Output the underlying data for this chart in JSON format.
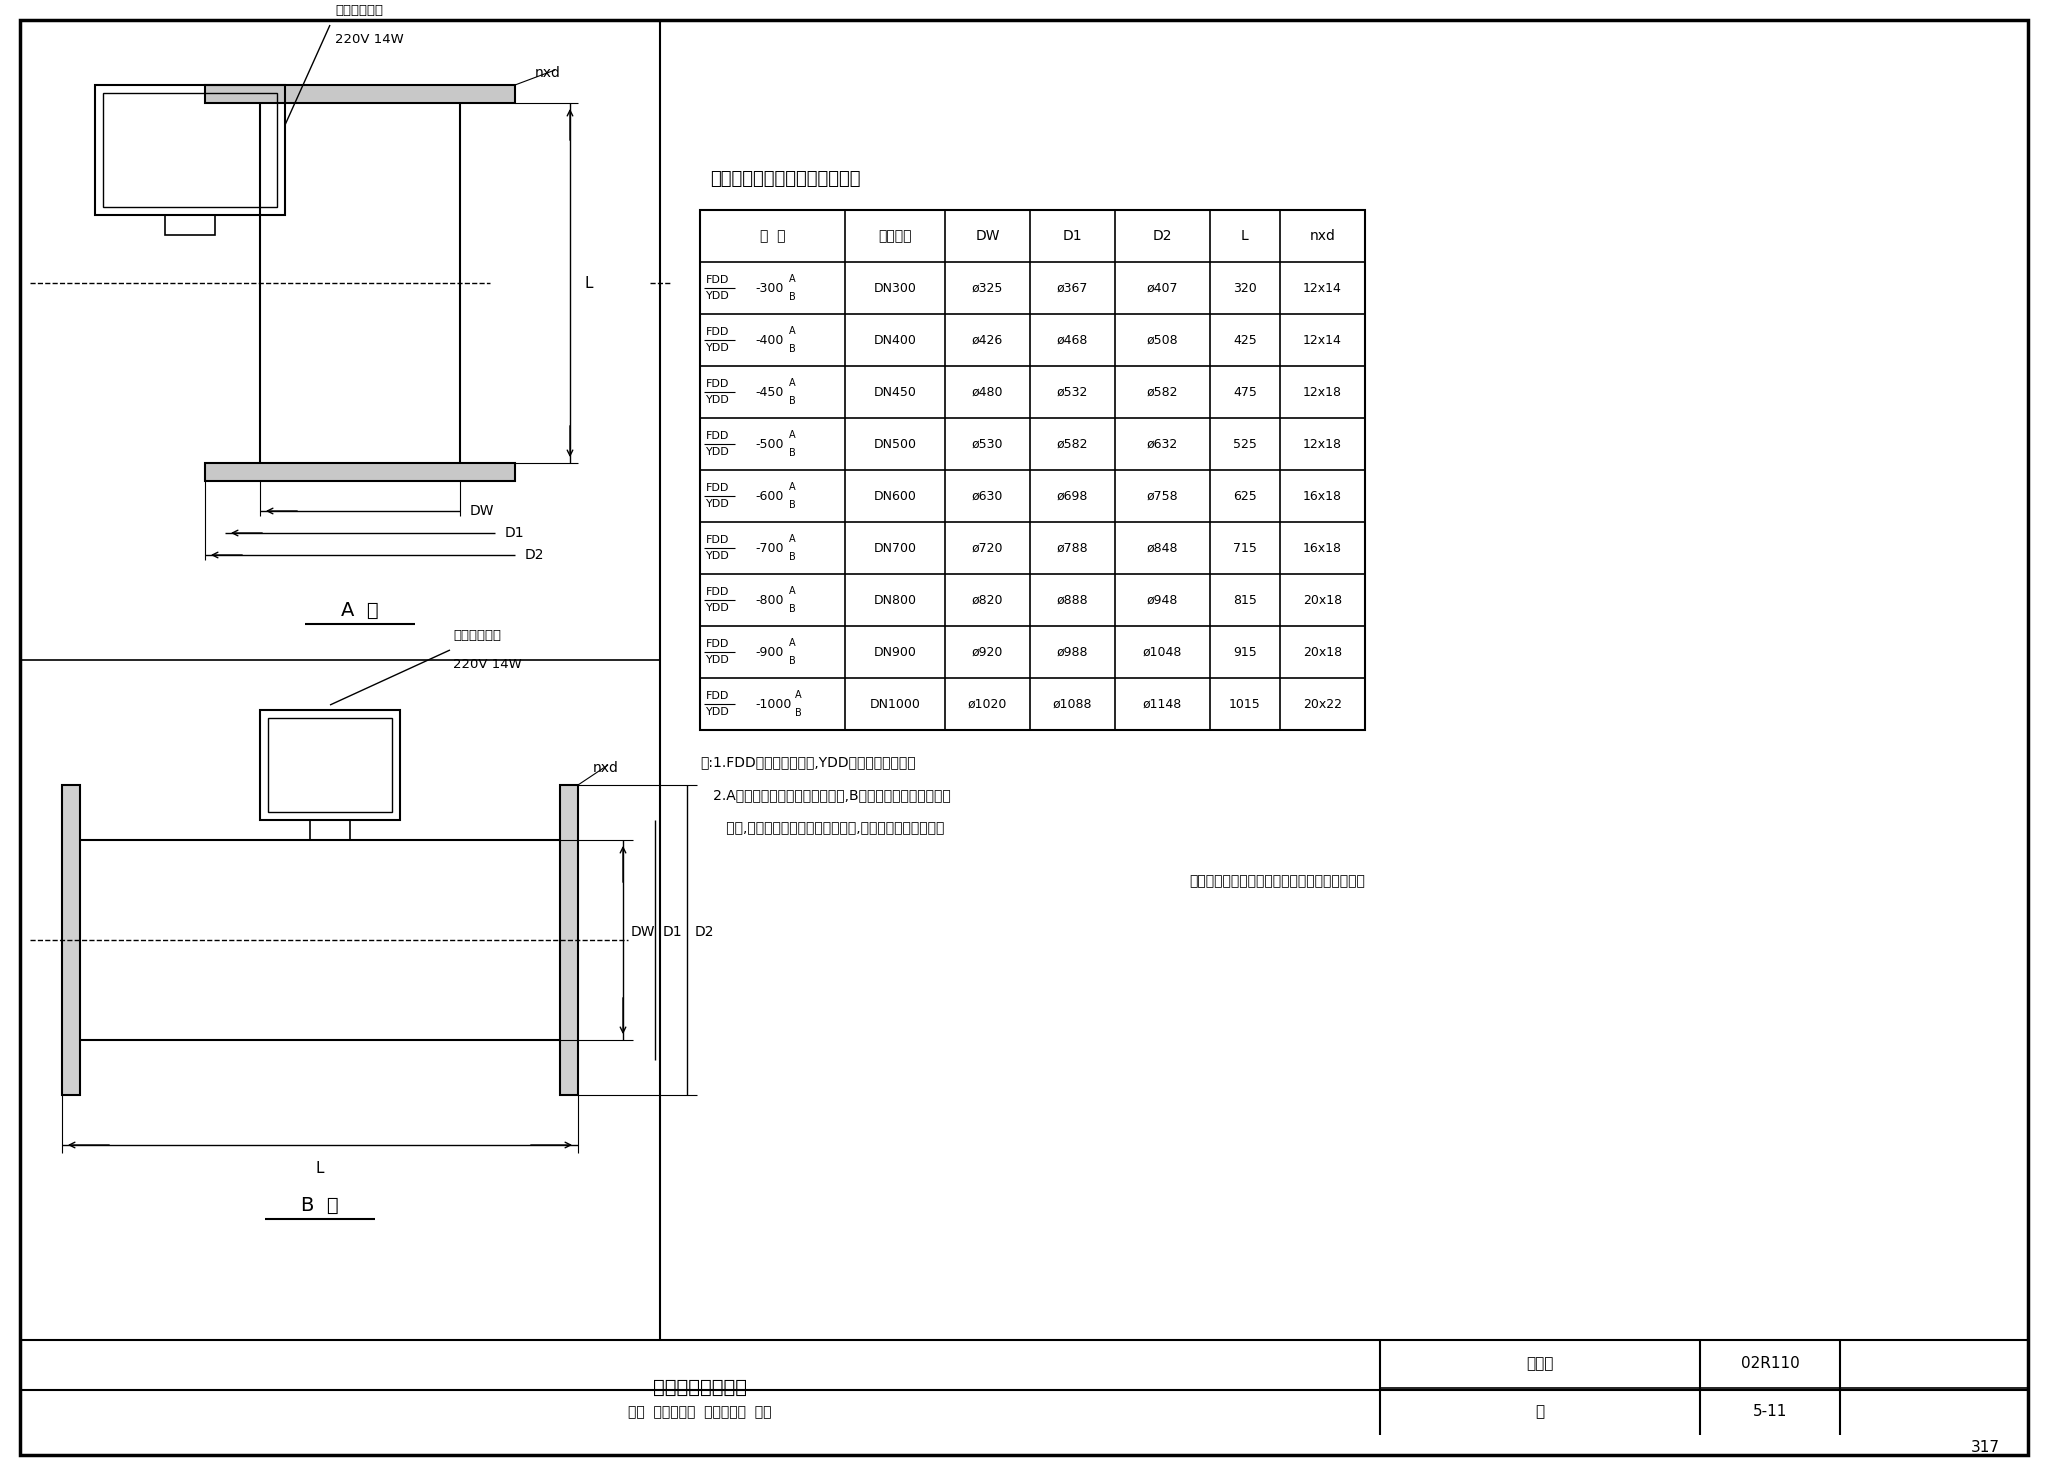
{
  "title": "电动风烟道蝶阀型号结构尺寸表",
  "table_headers": [
    "型  号",
    "公称直径",
    "DW",
    "D1",
    "D2",
    "L",
    "nxd"
  ],
  "table_col1": [
    [
      "FDD",
      "YDD",
      "-300",
      "A",
      "B"
    ],
    [
      "FDD",
      "YDD",
      "-400",
      "A",
      "B"
    ],
    [
      "FDD",
      "YDD",
      "-450",
      "A",
      "B"
    ],
    [
      "FDD",
      "YDD",
      "-500",
      "A",
      "B"
    ],
    [
      "FDD",
      "YDD",
      "-600",
      "A",
      "B"
    ],
    [
      "FDD",
      "YDD",
      "-700",
      "A",
      "B"
    ],
    [
      "FDD",
      "YDD",
      "-800",
      "A",
      "B"
    ],
    [
      "FDD",
      "YDD",
      "-900",
      "A",
      "B"
    ],
    [
      "FDD",
      "YDD",
      "-1000",
      "A",
      "B"
    ]
  ],
  "table_rows": [
    [
      "DN300",
      "ø325",
      "ø367",
      "ø407",
      "320",
      "12x14"
    ],
    [
      "DN400",
      "ø426",
      "ø468",
      "ø508",
      "425",
      "12x14"
    ],
    [
      "DN450",
      "ø480",
      "ø532",
      "ø582",
      "475",
      "12x18"
    ],
    [
      "DN500",
      "ø530",
      "ø582",
      "ø632",
      "525",
      "12x18"
    ],
    [
      "DN600",
      "ø630",
      "ø698",
      "ø758",
      "625",
      "16x18"
    ],
    [
      "DN700",
      "ø720",
      "ø788",
      "ø848",
      "715",
      "16x18"
    ],
    [
      "DN800",
      "ø820",
      "ø888",
      "ø948",
      "815",
      "20x18"
    ],
    [
      "DN900",
      "ø920",
      "ø988",
      "ø1048",
      "915",
      "20x18"
    ],
    [
      "DN1000",
      "ø1020",
      "ø1088",
      "ø1148",
      "1015",
      "20x22"
    ]
  ],
  "note_lines": [
    "注:1.FDD为风道电动蝶阀,YDD为烟道电动蝶阀。",
    "   2.A型适用于安装在垂直风烟道上,B型适用于安装在水平风烟",
    "      道上,也可根据烟道截面积制造方形,矩形电动风烟道蝶阀。"
  ],
  "footer_note": "本图按上海精达锅炉辅机厂产品的技术资料绘制",
  "title_box_left": "电动式风烟道蝶阀",
  "title_box_mid": "图集号",
  "title_box_right": "02R110",
  "page_label": "页",
  "page_num": "5-11",
  "bottom_right": "317",
  "label_A": "A  型",
  "label_B": "B  型",
  "motor_label1": "电动调节机构",
  "motor_label2": "220V 14W",
  "nxd_label": "nxd",
  "L_label": "L",
  "DW_label": "DW",
  "D1_label": "D1",
  "D2_label": "D2",
  "bg_color": "#ffffff",
  "line_color": "#000000",
  "text_color": "#000000"
}
